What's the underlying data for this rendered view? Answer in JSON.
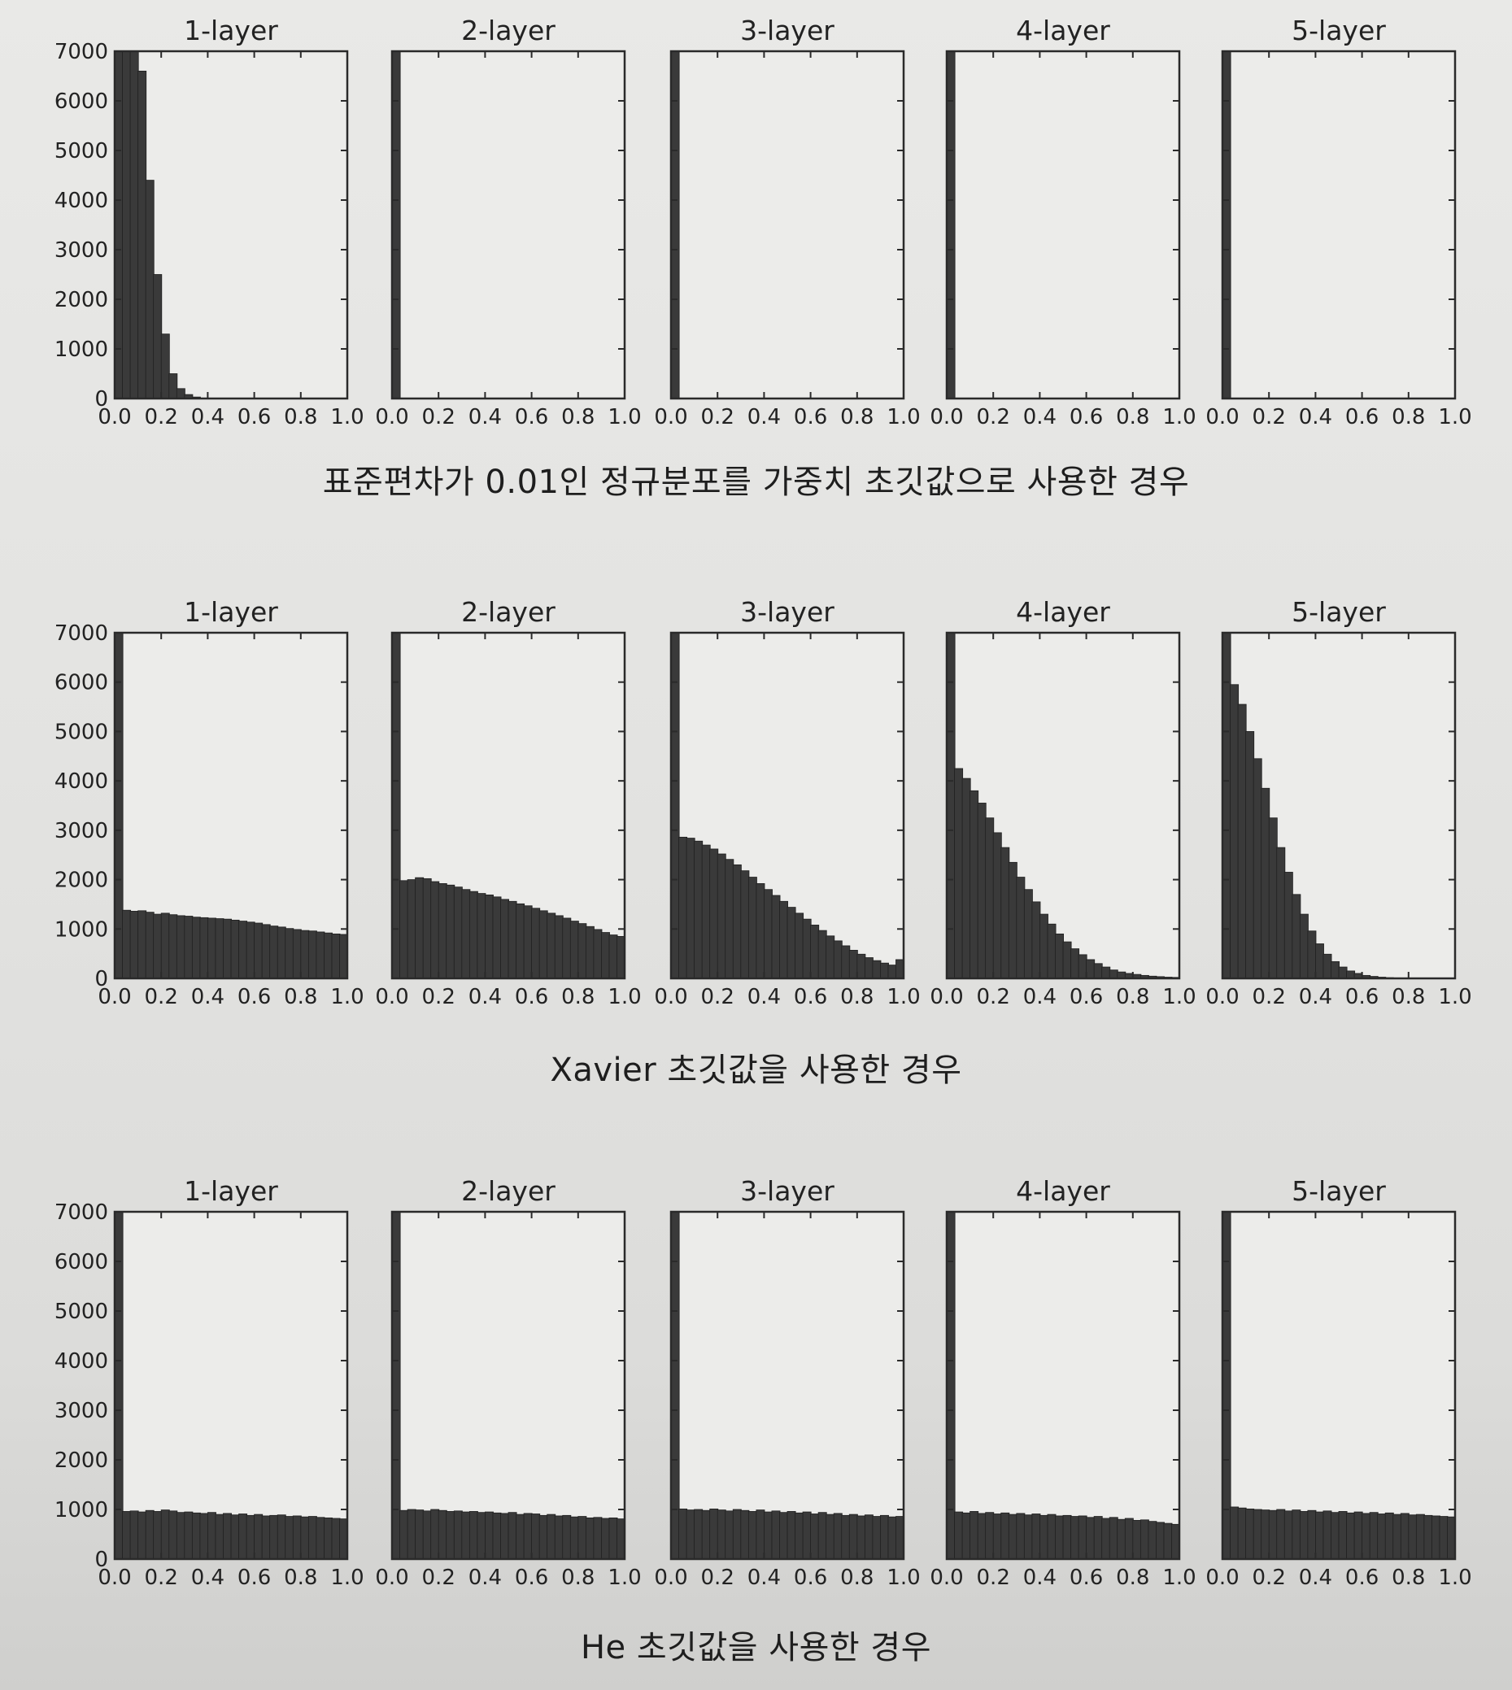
{
  "captions": {
    "row1": "표준편차가 0.01인 정규분포를 가중치 초깃값으로 사용한 경우",
    "row2": "Xavier 초깃값을 사용한 경우",
    "row3": "He 초깃값을 사용한 경우"
  },
  "colors": {
    "bar": "#3a3a3a",
    "axes_frame": "#2a2a2a",
    "plot_bg": "#ececea"
  },
  "chart_data": [
    {
      "type": "bar",
      "group": "표준편차가 0.01인 정규분포를 가중치 초깃값으로 사용한 경우",
      "title": "1-layer",
      "xlim": [
        0,
        1
      ],
      "ylim": [
        0,
        7000
      ],
      "xticks": [
        "0.0",
        "0.2",
        "0.4",
        "0.6",
        "0.8",
        "1.0"
      ],
      "yticks": [
        "0",
        "1000",
        "2000",
        "3000",
        "4000",
        "5000",
        "6000",
        "7000"
      ],
      "bin_width": 0.0333,
      "values": [
        7000,
        7000,
        7000,
        6600,
        4400,
        2500,
        1300,
        500,
        200,
        80,
        30,
        10,
        0,
        0,
        0,
        0,
        0,
        0,
        0,
        0,
        0,
        0,
        0,
        0,
        0,
        0,
        0,
        0,
        0,
        0
      ]
    },
    {
      "type": "bar",
      "group": "표준편차가 0.01인 정규분포를 가중치 초깃값으로 사용한 경우",
      "title": "2-layer",
      "xlim": [
        0,
        1
      ],
      "ylim": [
        0,
        7000
      ],
      "xticks": [
        "0.0",
        "0.2",
        "0.4",
        "0.6",
        "0.8",
        "1.0"
      ],
      "bin_width": 0.0333,
      "values": [
        7000,
        0,
        0,
        0,
        0,
        0,
        0,
        0,
        0,
        0,
        0,
        0,
        0,
        0,
        0,
        0,
        0,
        0,
        0,
        0,
        0,
        0,
        0,
        0,
        0,
        0,
        0,
        0,
        0,
        0
      ]
    },
    {
      "type": "bar",
      "group": "표준편차가 0.01인 정규분포를 가중치 초깃값으로 사용한 경우",
      "title": "3-layer",
      "xlim": [
        0,
        1
      ],
      "ylim": [
        0,
        7000
      ],
      "xticks": [
        "0.0",
        "0.2",
        "0.4",
        "0.6",
        "0.8",
        "1.0"
      ],
      "bin_width": 0.0333,
      "values": [
        7000,
        0,
        0,
        0,
        0,
        0,
        0,
        0,
        0,
        0,
        0,
        0,
        0,
        0,
        0,
        0,
        0,
        0,
        0,
        0,
        0,
        0,
        0,
        0,
        0,
        0,
        0,
        0,
        0,
        0
      ]
    },
    {
      "type": "bar",
      "group": "표준편차가 0.01인 정규분포를 가중치 초깃값으로 사용한 경우",
      "title": "4-layer",
      "xlim": [
        0,
        1
      ],
      "ylim": [
        0,
        7000
      ],
      "xticks": [
        "0.0",
        "0.2",
        "0.4",
        "0.6",
        "0.8",
        "1.0"
      ],
      "bin_width": 0.0333,
      "values": [
        7000,
        0,
        0,
        0,
        0,
        0,
        0,
        0,
        0,
        0,
        0,
        0,
        0,
        0,
        0,
        0,
        0,
        0,
        0,
        0,
        0,
        0,
        0,
        0,
        0,
        0,
        0,
        0,
        0,
        0
      ]
    },
    {
      "type": "bar",
      "group": "표준편차가 0.01인 정규분포를 가중치 초깃값으로 사용한 경우",
      "title": "5-layer",
      "xlim": [
        0,
        1
      ],
      "ylim": [
        0,
        7000
      ],
      "xticks": [
        "0.0",
        "0.2",
        "0.4",
        "0.6",
        "0.8",
        "1.0"
      ],
      "bin_width": 0.0333,
      "values": [
        7000,
        0,
        0,
        0,
        0,
        0,
        0,
        0,
        0,
        0,
        0,
        0,
        0,
        0,
        0,
        0,
        0,
        0,
        0,
        0,
        0,
        0,
        0,
        0,
        0,
        0,
        0,
        0,
        0,
        0
      ]
    },
    {
      "type": "bar",
      "group": "Xavier 초깃값을 사용한 경우",
      "title": "1-layer",
      "xlim": [
        0,
        1
      ],
      "ylim": [
        0,
        7000
      ],
      "xticks": [
        "0.0",
        "0.2",
        "0.4",
        "0.6",
        "0.8",
        "1.0"
      ],
      "yticks": [
        "0",
        "1000",
        "2000",
        "3000",
        "4000",
        "5000",
        "6000",
        "7000"
      ],
      "bin_width": 0.0333,
      "values": [
        7000,
        1380,
        1360,
        1370,
        1340,
        1300,
        1320,
        1290,
        1270,
        1260,
        1240,
        1230,
        1220,
        1210,
        1200,
        1180,
        1160,
        1140,
        1120,
        1090,
        1060,
        1040,
        1010,
        990,
        970,
        960,
        940,
        920,
        900,
        890
      ]
    },
    {
      "type": "bar",
      "group": "Xavier 초깃값을 사용한 경우",
      "title": "2-layer",
      "xlim": [
        0,
        1
      ],
      "ylim": [
        0,
        7000
      ],
      "xticks": [
        "0.0",
        "0.2",
        "0.4",
        "0.6",
        "0.8",
        "1.0"
      ],
      "bin_width": 0.0333,
      "values": [
        7000,
        1980,
        2000,
        2040,
        2020,
        1960,
        1920,
        1890,
        1850,
        1800,
        1760,
        1720,
        1690,
        1650,
        1600,
        1560,
        1510,
        1470,
        1420,
        1370,
        1320,
        1270,
        1220,
        1160,
        1110,
        1050,
        990,
        930,
        880,
        850
      ]
    },
    {
      "type": "bar",
      "group": "Xavier 초깃값을 사용한 경우",
      "title": "3-layer",
      "xlim": [
        0,
        1
      ],
      "ylim": [
        0,
        7000
      ],
      "xticks": [
        "0.0",
        "0.2",
        "0.4",
        "0.6",
        "0.8",
        "1.0"
      ],
      "bin_width": 0.0333,
      "values": [
        7000,
        2860,
        2840,
        2780,
        2700,
        2620,
        2520,
        2410,
        2300,
        2180,
        2050,
        1920,
        1800,
        1680,
        1560,
        1440,
        1320,
        1200,
        1080,
        970,
        860,
        760,
        660,
        570,
        490,
        420,
        360,
        310,
        270,
        380
      ]
    },
    {
      "type": "bar",
      "group": "Xavier 초깃값을 사용한 경우",
      "title": "4-layer",
      "xlim": [
        0,
        1
      ],
      "ylim": [
        0,
        7000
      ],
      "xticks": [
        "0.0",
        "0.2",
        "0.4",
        "0.6",
        "0.8",
        "1.0"
      ],
      "bin_width": 0.0333,
      "values": [
        7000,
        4250,
        4050,
        3800,
        3550,
        3250,
        2950,
        2650,
        2350,
        2050,
        1800,
        1550,
        1300,
        1100,
        900,
        740,
        600,
        480,
        380,
        300,
        230,
        170,
        130,
        100,
        80,
        60,
        45,
        35,
        25,
        20
      ]
    },
    {
      "type": "bar",
      "group": "Xavier 초깃값을 사용한 경우",
      "title": "5-layer",
      "xlim": [
        0,
        1
      ],
      "ylim": [
        0,
        7000
      ],
      "xticks": [
        "0.0",
        "0.2",
        "0.4",
        "0.6",
        "0.8",
        "1.0"
      ],
      "bin_width": 0.0333,
      "values": [
        7000,
        5950,
        5550,
        5000,
        4450,
        3850,
        3250,
        2650,
        2150,
        1700,
        1300,
        960,
        700,
        490,
        340,
        230,
        150,
        100,
        60,
        40,
        25,
        15,
        10,
        5,
        0,
        0,
        0,
        0,
        0,
        0
      ]
    },
    {
      "type": "bar",
      "group": "He 초깃값을 사용한 경우",
      "title": "1-layer",
      "xlim": [
        0,
        1
      ],
      "ylim": [
        0,
        7000
      ],
      "xticks": [
        "0.0",
        "0.2",
        "0.4",
        "0.6",
        "0.8",
        "1.0"
      ],
      "yticks": [
        "0",
        "1000",
        "2000",
        "3000",
        "4000",
        "5000",
        "6000",
        "7000"
      ],
      "bin_width": 0.0333,
      "values": [
        7000,
        960,
        970,
        950,
        980,
        960,
        990,
        970,
        940,
        950,
        930,
        920,
        940,
        900,
        920,
        890,
        910,
        880,
        900,
        870,
        880,
        890,
        860,
        870,
        850,
        860,
        840,
        830,
        820,
        810
      ]
    },
    {
      "type": "bar",
      "group": "He 초깃값을 사용한 경우",
      "title": "2-layer",
      "xlim": [
        0,
        1
      ],
      "ylim": [
        0,
        7000
      ],
      "xticks": [
        "0.0",
        "0.2",
        "0.4",
        "0.6",
        "0.8",
        "1.0"
      ],
      "bin_width": 0.0333,
      "values": [
        7000,
        980,
        1000,
        990,
        970,
        1000,
        980,
        960,
        970,
        950,
        960,
        940,
        950,
        930,
        920,
        940,
        900,
        920,
        910,
        880,
        900,
        870,
        880,
        850,
        860,
        830,
        840,
        820,
        830,
        810
      ]
    },
    {
      "type": "bar",
      "group": "He 초깃값을 사용한 경우",
      "title": "3-layer",
      "xlim": [
        0,
        1
      ],
      "ylim": [
        0,
        7000
      ],
      "xticks": [
        "0.0",
        "0.2",
        "0.4",
        "0.6",
        "0.8",
        "1.0"
      ],
      "bin_width": 0.0333,
      "values": [
        7000,
        1010,
        990,
        1000,
        980,
        1010,
        990,
        970,
        1000,
        980,
        960,
        990,
        950,
        970,
        940,
        960,
        930,
        950,
        910,
        940,
        900,
        920,
        880,
        900,
        870,
        890,
        860,
        880,
        850,
        860
      ]
    },
    {
      "type": "bar",
      "group": "He 초깃값을 사용한 경우",
      "title": "4-layer",
      "xlim": [
        0,
        1
      ],
      "ylim": [
        0,
        7000
      ],
      "xticks": [
        "0.0",
        "0.2",
        "0.4",
        "0.6",
        "0.8",
        "1.0"
      ],
      "bin_width": 0.0333,
      "values": [
        7000,
        950,
        930,
        960,
        920,
        940,
        910,
        930,
        900,
        920,
        890,
        910,
        880,
        900,
        870,
        880,
        860,
        870,
        840,
        860,
        820,
        840,
        800,
        820,
        780,
        790,
        760,
        740,
        720,
        700
      ]
    },
    {
      "type": "bar",
      "group": "He 초깃값을 사용한 경우",
      "title": "5-layer",
      "xlim": [
        0,
        1
      ],
      "ylim": [
        0,
        7000
      ],
      "xticks": [
        "0.0",
        "0.2",
        "0.4",
        "0.6",
        "0.8",
        "1.0"
      ],
      "bin_width": 0.0333,
      "values": [
        7000,
        1050,
        1030,
        1010,
        1000,
        990,
        980,
        1000,
        970,
        990,
        960,
        980,
        950,
        970,
        940,
        960,
        930,
        950,
        920,
        940,
        910,
        930,
        900,
        920,
        890,
        900,
        880,
        870,
        860,
        850
      ]
    }
  ]
}
